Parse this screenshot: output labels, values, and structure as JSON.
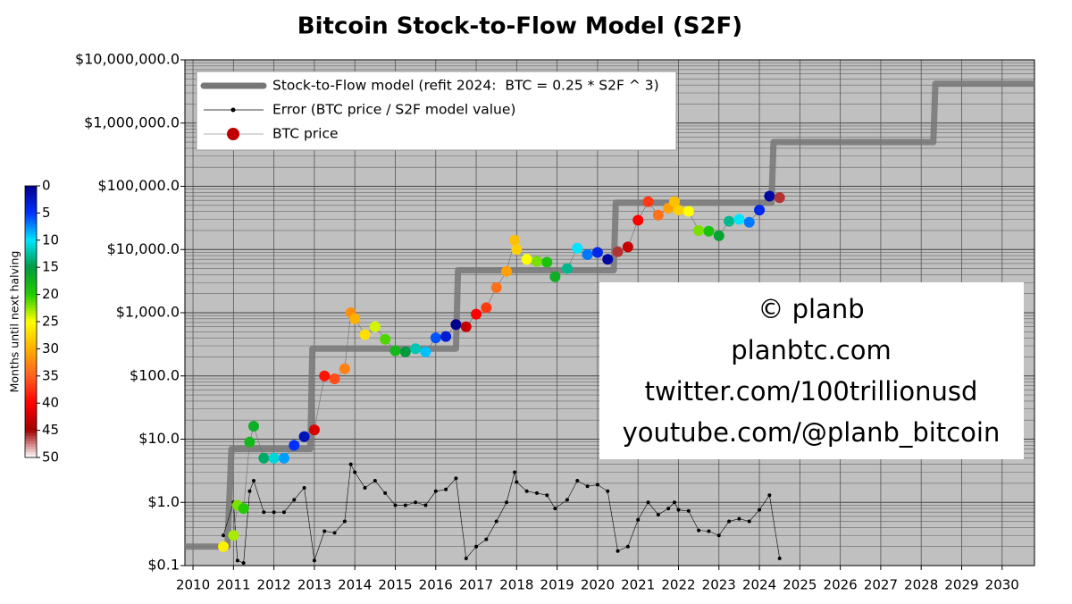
{
  "chart_data": {
    "type": "line",
    "title": "Bitcoin Stock-to-Flow Model (S2F)",
    "log_y": true,
    "grid": true,
    "legend_loc": "upper left",
    "background": "#c0c0c0",
    "xlim": [
      2009.8,
      2030.8
    ],
    "xticks": [
      2010,
      2011,
      2012,
      2013,
      2014,
      2015,
      2016,
      2017,
      2018,
      2019,
      2020,
      2021,
      2022,
      2023,
      2024,
      2025,
      2026,
      2027,
      2028,
      2029,
      2030
    ],
    "ylim": [
      0.1,
      10000000
    ],
    "yticks": [
      {
        "value": 0.1,
        "label": "$0.1"
      },
      {
        "value": 1,
        "label": "$1.0"
      },
      {
        "value": 10,
        "label": "$10.0"
      },
      {
        "value": 100,
        "label": "$100.0"
      },
      {
        "value": 1000,
        "label": "$1,000.0"
      },
      {
        "value": 10000,
        "label": "$10,000.0"
      },
      {
        "value": 100000,
        "label": "$100,000.0"
      },
      {
        "value": 1000000,
        "label": "$1,000,000.0"
      },
      {
        "value": 10000000,
        "label": "$10,000,000.0"
      }
    ],
    "series": [
      {
        "name": "Stock-to-Flow model (refit 2024:  BTC = 0.25 * S2F ^ 3)",
        "color": "#777777",
        "x": [
          2009.8,
          2010.85,
          2010.95,
          2012.9,
          2012.95,
          2016.5,
          2016.55,
          2020.4,
          2020.45,
          2024.3,
          2024.35,
          2028.3,
          2028.35,
          2030.8
        ],
        "values": [
          0.2,
          0.2,
          7,
          7,
          270,
          270,
          4700,
          4700,
          55000,
          55000,
          500000,
          500000,
          4200000,
          4200000
        ]
      },
      {
        "name": "Error (BTC price / S2F model value)",
        "color": "#000000",
        "x": [
          2010.75,
          2011.0,
          2011.1,
          2011.25,
          2011.4,
          2011.5,
          2011.75,
          2012.0,
          2012.25,
          2012.5,
          2012.75,
          2013.0,
          2013.25,
          2013.5,
          2013.75,
          2013.9,
          2014.0,
          2014.25,
          2014.5,
          2014.75,
          2015.0,
          2015.25,
          2015.5,
          2015.75,
          2016.0,
          2016.25,
          2016.5,
          2016.75,
          2017.0,
          2017.25,
          2017.5,
          2017.75,
          2017.95,
          2018.0,
          2018.25,
          2018.5,
          2018.75,
          2018.95,
          2019.25,
          2019.5,
          2019.75,
          2020.0,
          2020.25,
          2020.5,
          2020.75,
          2021.0,
          2021.25,
          2021.5,
          2021.75,
          2021.9,
          2022.0,
          2022.25,
          2022.5,
          2022.75,
          2023.0,
          2023.25,
          2023.5,
          2023.75,
          2024.0,
          2024.25,
          2024.5
        ],
        "values": [
          0.3,
          1.0,
          0.12,
          0.11,
          1.5,
          2.2,
          0.7,
          0.7,
          0.7,
          1.1,
          1.7,
          0.12,
          0.35,
          0.33,
          0.5,
          4,
          3,
          1.7,
          2.2,
          1.4,
          0.9,
          0.9,
          1.0,
          0.9,
          1.5,
          1.6,
          2.4,
          0.13,
          0.2,
          0.26,
          0.5,
          1.0,
          3,
          2.1,
          1.5,
          1.4,
          1.3,
          0.8,
          1.1,
          2.2,
          1.8,
          1.9,
          1.5,
          0.17,
          0.2,
          0.53,
          1.0,
          0.64,
          0.8,
          1.0,
          0.76,
          0.73,
          0.36,
          0.35,
          0.3,
          0.5,
          0.55,
          0.5,
          0.76,
          1.3,
          0.13
        ]
      },
      {
        "name": "BTC price",
        "color": "#c00000",
        "x": [
          2010.75,
          2011.0,
          2011.1,
          2011.25,
          2011.4,
          2011.5,
          2011.75,
          2012.0,
          2012.25,
          2012.5,
          2012.75,
          2013.0,
          2013.25,
          2013.5,
          2013.75,
          2013.9,
          2014.0,
          2014.25,
          2014.5,
          2014.75,
          2015.0,
          2015.25,
          2015.5,
          2015.75,
          2016.0,
          2016.25,
          2016.5,
          2016.75,
          2017.0,
          2017.25,
          2017.5,
          2017.75,
          2017.95,
          2018.0,
          2018.25,
          2018.5,
          2018.75,
          2018.95,
          2019.25,
          2019.5,
          2019.75,
          2020.0,
          2020.25,
          2020.5,
          2020.75,
          2021.0,
          2021.25,
          2021.5,
          2021.75,
          2021.9,
          2022.0,
          2022.25,
          2022.5,
          2022.75,
          2023.0,
          2023.25,
          2023.5,
          2023.75,
          2024.0,
          2024.25,
          2024.5
        ],
        "values": [
          0.2,
          0.3,
          0.9,
          0.8,
          9,
          16,
          5,
          5,
          5,
          8,
          11,
          14,
          100,
          90,
          130,
          1000,
          800,
          450,
          600,
          380,
          250,
          240,
          270,
          240,
          400,
          420,
          650,
          600,
          950,
          1200,
          2500,
          4500,
          14000,
          10000,
          7000,
          6500,
          6300,
          3700,
          5000,
          10500,
          8300,
          9000,
          7000,
          9200,
          11000,
          29000,
          57000,
          35000,
          45000,
          57000,
          42000,
          40000,
          20000,
          19500,
          16500,
          28000,
          30000,
          27000,
          42000,
          70000,
          66000
        ],
        "months": [
          26,
          23,
          22,
          20,
          18,
          17,
          14,
          11,
          8,
          5,
          2,
          42,
          39,
          36,
          33,
          32,
          30,
          27,
          24,
          21,
          18,
          15,
          12,
          9,
          6,
          3,
          0,
          43,
          40,
          37,
          34,
          31,
          29,
          28,
          25,
          22,
          19,
          17,
          13,
          10,
          7,
          4,
          1,
          46,
          43,
          40,
          37,
          34,
          31,
          29,
          28,
          25,
          22,
          19,
          16,
          13,
          10,
          7,
          4,
          1,
          46
        ]
      }
    ],
    "colorbar": {
      "label": "Months until next halving",
      "lim": [
        0,
        50
      ],
      "ticks": [
        0,
        5,
        10,
        15,
        20,
        25,
        30,
        35,
        40,
        45,
        50
      ],
      "colors": [
        "#00008b",
        "#0030ff",
        "#00e5ff",
        "#009a40",
        "#22cc00",
        "#ffff00",
        "#ffb000",
        "#ff6020",
        "#ff0000",
        "#a00000",
        "#ffffff"
      ]
    },
    "annotations": [
      "© planb",
      "planbtc.com",
      "twitter.com/100trillionusd",
      "youtube.com/@planb_bitcoin"
    ]
  }
}
